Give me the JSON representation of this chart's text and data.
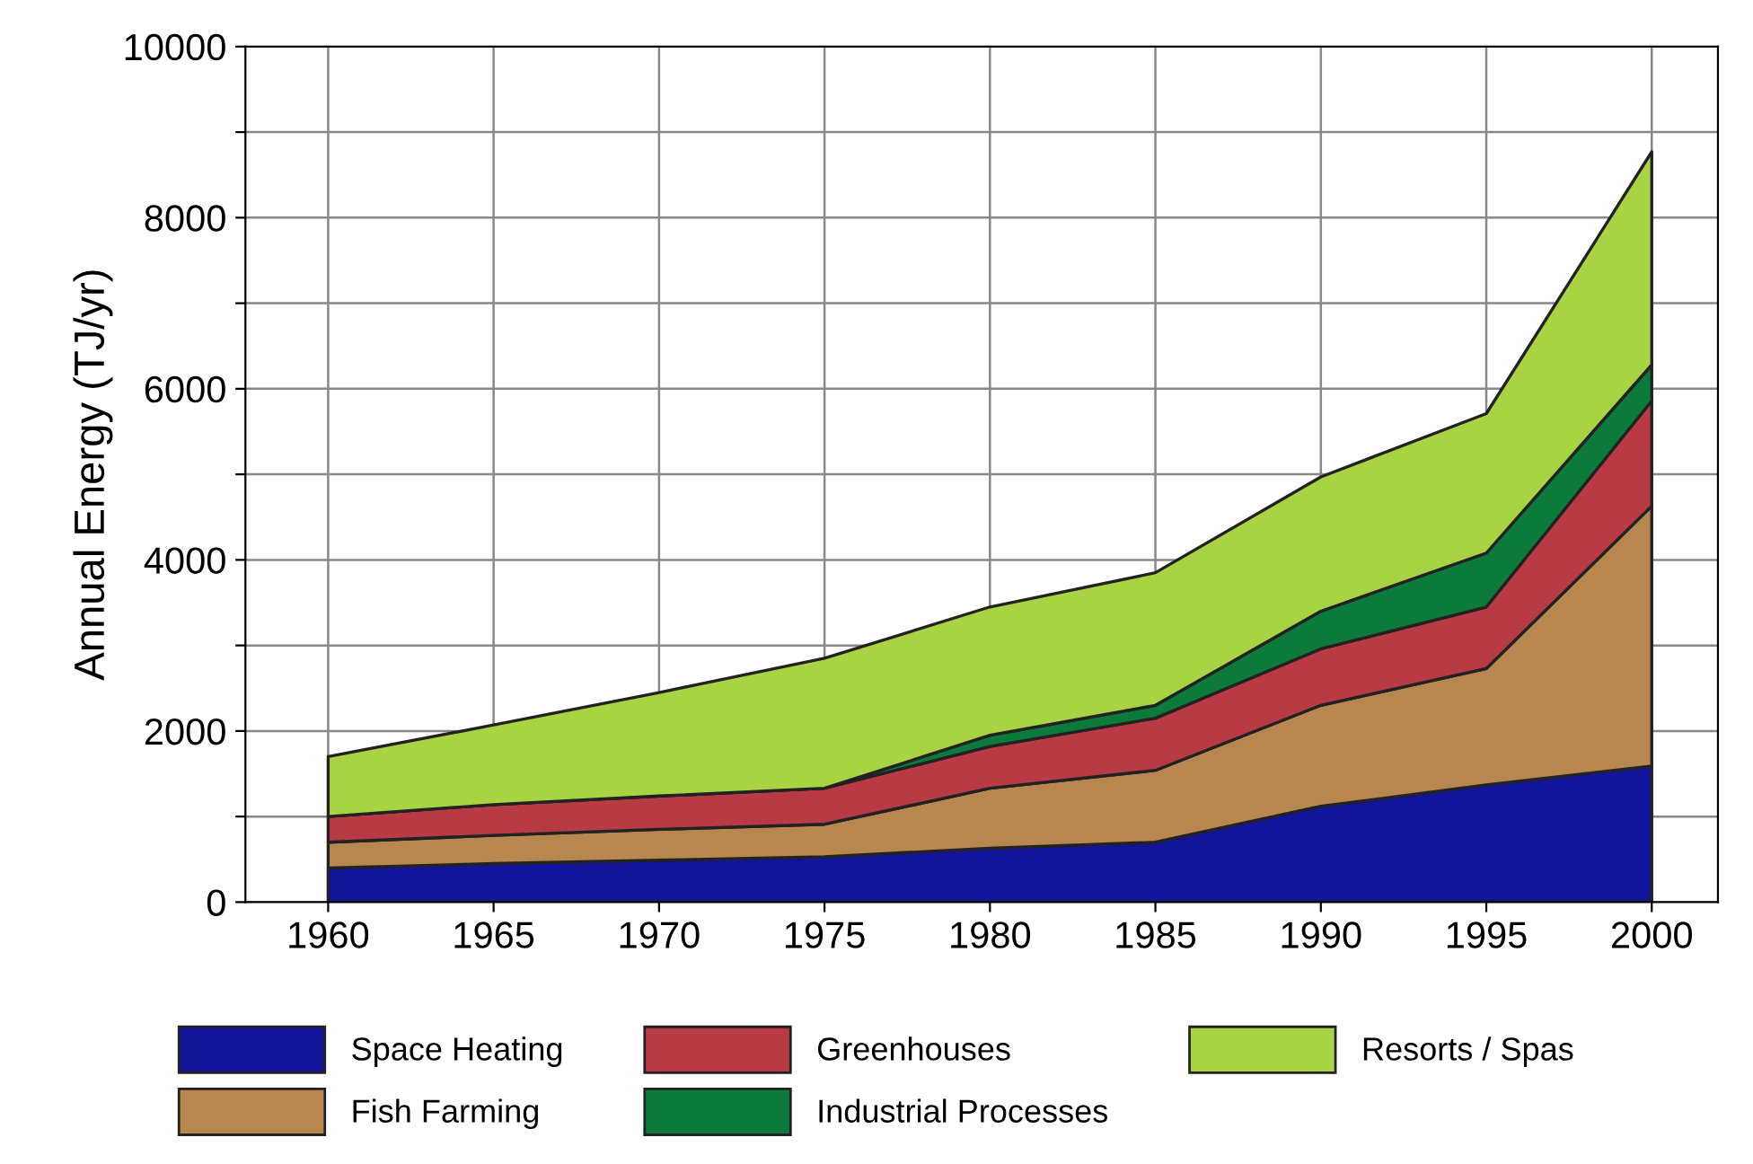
{
  "chart_data": {
    "type": "area",
    "stacked": true,
    "ylabel": "Annual Energy (TJ/yr)",
    "x": [
      1960,
      1965,
      1970,
      1975,
      1980,
      1985,
      1990,
      1995,
      2000
    ],
    "series": [
      {
        "name": "Space Heating",
        "color": "#12149a",
        "values": [
          400,
          450,
          490,
          530,
          630,
          700,
          1120,
          1370,
          1590
        ]
      },
      {
        "name": "Fish Farming",
        "color": "#b8864f",
        "values": [
          300,
          330,
          360,
          380,
          700,
          840,
          1180,
          1360,
          3040
        ]
      },
      {
        "name": "Greenhouses",
        "color": "#b83a45",
        "values": [
          300,
          360,
          390,
          420,
          490,
          610,
          660,
          720,
          1230
        ]
      },
      {
        "name": "Industrial Processes",
        "color": "#0b7a3a",
        "values": [
          0,
          0,
          0,
          0,
          130,
          150,
          440,
          630,
          420
        ]
      },
      {
        "name": "Resorts / Spas",
        "color": "#a8d444",
        "values": [
          700,
          930,
          1210,
          1520,
          1500,
          1550,
          1570,
          1630,
          2490
        ]
      }
    ],
    "xlim": [
      1957.5,
      2002
    ],
    "xticks": [
      1960,
      1965,
      1970,
      1975,
      1980,
      1985,
      1990,
      1995,
      2000
    ],
    "ylim": [
      0,
      10000
    ],
    "yticks": [
      0,
      {
        "value": 1000,
        "label": null
      },
      2000,
      {
        "value": 3000,
        "label": null
      },
      4000,
      {
        "value": 5000,
        "label": null
      },
      6000,
      {
        "value": 7000,
        "label": null
      },
      8000,
      {
        "value": 9000,
        "label": null
      },
      10000
    ],
    "grid": true,
    "legend": "bottom"
  }
}
